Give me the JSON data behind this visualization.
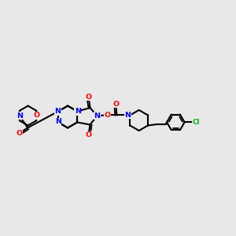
{
  "bg_color": "#e8e8e8",
  "bond_color": "#000000",
  "N_color": "#0000ff",
  "O_color": "#ff0000",
  "Cl_color": "#00bb00",
  "lw": 1.5,
  "lw_inner": 1.3,
  "fs": 6.8,
  "figsize": [
    3.0,
    3.0
  ],
  "dpi": 100,
  "xlim": [
    0,
    10
  ],
  "ylim": [
    2.5,
    7.5
  ]
}
